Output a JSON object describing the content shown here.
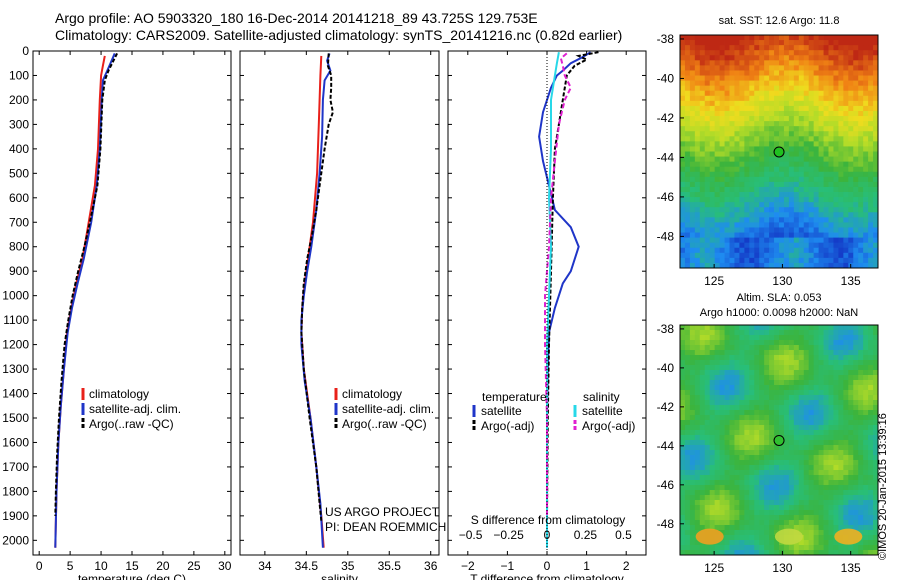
{
  "header": {
    "line1": "Argo profile: AO 5903320_180 16-Dec-2014 20141218_89 43.725S 129.753E",
    "line2": "Climatology: CARS2009. Satellite-adjusted climatology: synTS_20141216.nc (0.82d earlier)"
  },
  "watermark": "©IMOS 20-Jan-2015 13:39:16",
  "colors": {
    "climatology": "#e8201a",
    "satellite": "#1f35c8",
    "argo": "#000000",
    "cyan": "#28d8e8",
    "magenta": "#e020d0"
  },
  "chart_data": [
    {
      "type": "line",
      "xlabel": "temperature (deg C)",
      "ylabel": "",
      "xlim": [
        -1,
        31
      ],
      "ylim": [
        2060,
        0
      ],
      "xticks": [
        0,
        5,
        10,
        15,
        20,
        25,
        30
      ],
      "xtick_labels": [
        "0",
        "5",
        "10",
        "15",
        "20",
        "25",
        "30"
      ],
      "yticks": [
        0,
        100,
        200,
        300,
        400,
        500,
        600,
        700,
        800,
        900,
        1000,
        1100,
        1200,
        1300,
        1400,
        1500,
        1600,
        1700,
        1800,
        1900,
        2000
      ],
      "ytick_labels": [
        "0",
        "100",
        "200",
        "300",
        "400",
        "500",
        "600",
        "700",
        "800",
        "900",
        "1000",
        "1100",
        "1200",
        "1300",
        "1400",
        "1500",
        "1600",
        "1700",
        "1800",
        "1900",
        "2000"
      ],
      "legend": [
        "climatology",
        "satellite-adj. clim.",
        "Argo(..raw -QC)"
      ],
      "series": [
        {
          "name": "climatology",
          "color": "red",
          "dash": "",
          "points": [
            [
              10.6,
              20
            ],
            [
              10.3,
              60
            ],
            [
              10.0,
              100
            ],
            [
              9.8,
              200
            ],
            [
              9.5,
              400
            ],
            [
              9.0,
              550
            ],
            [
              8.0,
              700
            ],
            [
              7.0,
              850
            ],
            [
              6.0,
              950
            ],
            [
              5.2,
              1050
            ],
            [
              4.5,
              1150
            ],
            [
              4.0,
              1300
            ],
            [
              3.5,
              1450
            ],
            [
              3.1,
              1600
            ],
            [
              2.8,
              1800
            ],
            [
              2.6,
              2030
            ]
          ]
        },
        {
          "name": "satellite-adj. clim.",
          "color": "blue",
          "dash": "",
          "points": [
            [
              12.2,
              10
            ],
            [
              11.7,
              40
            ],
            [
              11.0,
              80
            ],
            [
              10.3,
              120
            ],
            [
              10.1,
              200
            ],
            [
              9.8,
              400
            ],
            [
              9.3,
              550
            ],
            [
              8.4,
              700
            ],
            [
              7.2,
              850
            ],
            [
              6.2,
              950
            ],
            [
              5.3,
              1050
            ],
            [
              4.6,
              1150
            ],
            [
              4.0,
              1300
            ],
            [
              3.5,
              1450
            ],
            [
              3.1,
              1600
            ],
            [
              2.8,
              1800
            ],
            [
              2.6,
              2030
            ]
          ]
        },
        {
          "name": "Argo(..raw -QC)",
          "color": "black",
          "dash": "4,2",
          "points": [
            [
              12.6,
              10
            ],
            [
              11.8,
              50
            ],
            [
              11.2,
              80
            ],
            [
              10.6,
              120
            ],
            [
              10.2,
              200
            ],
            [
              9.9,
              400
            ],
            [
              9.4,
              550
            ],
            [
              8.2,
              700
            ],
            [
              7.3,
              800
            ],
            [
              6.3,
              900
            ],
            [
              5.4,
              1000
            ],
            [
              4.7,
              1100
            ],
            [
              4.1,
              1200
            ],
            [
              3.6,
              1350
            ],
            [
              3.2,
              1500
            ],
            [
              2.9,
              1650
            ],
            [
              2.7,
              1800
            ],
            [
              2.6,
              1900
            ]
          ]
        }
      ]
    },
    {
      "type": "line",
      "xlabel": "salinity",
      "xlim": [
        33.7,
        36.1
      ],
      "ylim": [
        2060,
        0
      ],
      "xticks": [
        34,
        34.5,
        35,
        35.5,
        36
      ],
      "xtick_labels": [
        "34",
        "34.5",
        "35",
        "35.5",
        "36"
      ],
      "legend": [
        "climatology",
        "satellite-adj. clim.",
        "Argo(..raw -QC)"
      ],
      "annotation": [
        "US ARGO PROJECT",
        "PI: DEAN ROEMMICH"
      ],
      "series": [
        {
          "name": "climatology",
          "color": "red",
          "dash": "",
          "points": [
            [
              34.68,
              20
            ],
            [
              34.67,
              100
            ],
            [
              34.65,
              300
            ],
            [
              34.63,
              500
            ],
            [
              34.58,
              700
            ],
            [
              34.52,
              850
            ],
            [
              34.48,
              950
            ],
            [
              34.45,
              1050
            ],
            [
              34.44,
              1150
            ],
            [
              34.47,
              1300
            ],
            [
              34.55,
              1500
            ],
            [
              34.62,
              1700
            ],
            [
              34.68,
              1900
            ],
            [
              34.71,
              2030
            ]
          ]
        },
        {
          "name": "satellite-adj. clim.",
          "color": "blue",
          "dash": "",
          "points": [
            [
              34.78,
              10
            ],
            [
              34.75,
              40
            ],
            [
              34.79,
              80
            ],
            [
              34.72,
              120
            ],
            [
              34.7,
              200
            ],
            [
              34.69,
              350
            ],
            [
              34.66,
              500
            ],
            [
              34.62,
              650
            ],
            [
              34.56,
              800
            ],
            [
              34.51,
              900
            ],
            [
              34.47,
              1000
            ],
            [
              34.44,
              1100
            ],
            [
              34.44,
              1200
            ],
            [
              34.48,
              1350
            ],
            [
              34.55,
              1500
            ],
            [
              34.62,
              1700
            ],
            [
              34.67,
              1850
            ],
            [
              34.7,
              2030
            ]
          ]
        },
        {
          "name": "Argo(..raw -QC)",
          "color": "black",
          "dash": "4,2",
          "points": [
            [
              34.77,
              10
            ],
            [
              34.76,
              60
            ],
            [
              34.8,
              100
            ],
            [
              34.8,
              150
            ],
            [
              34.79,
              200
            ],
            [
              34.82,
              250
            ],
            [
              34.77,
              300
            ],
            [
              34.72,
              400
            ],
            [
              34.66,
              550
            ],
            [
              34.62,
              650
            ],
            [
              34.57,
              750
            ],
            [
              34.51,
              850
            ],
            [
              34.47,
              950
            ],
            [
              34.45,
              1050
            ],
            [
              34.44,
              1150
            ],
            [
              34.47,
              1300
            ],
            [
              34.54,
              1500
            ],
            [
              34.62,
              1700
            ],
            [
              34.66,
              1850
            ],
            [
              34.68,
              1920
            ]
          ]
        }
      ]
    },
    {
      "type": "line",
      "xlabel": "T difference from climatology",
      "xlabel_top": "S difference from climatology",
      "xlim": [
        -2.5,
        2.5
      ],
      "ylim": [
        2060,
        0
      ],
      "xticks": [
        -2,
        -1,
        0,
        1,
        2
      ],
      "xtick_labels": [
        "−2",
        "−1",
        "0",
        "1",
        "2"
      ],
      "sticks": [
        -1.93,
        -0.97,
        0,
        0.97,
        1.93
      ],
      "stick_labels": [
        "−0.5",
        "−0.25",
        "0",
        "0.25",
        "0.5"
      ],
      "legend_titles": [
        "temperature",
        "salinity"
      ],
      "legend": [
        "satellite",
        "Argo(-adj)",
        "satellite",
        "Argo(-adj)"
      ],
      "series": [
        {
          "name": "satellite",
          "color": "blue",
          "dash": "",
          "points": [
            [
              1.1,
              5
            ],
            [
              0.9,
              25
            ],
            [
              0.6,
              50
            ],
            [
              0.4,
              80
            ],
            [
              0.25,
              100
            ],
            [
              0.1,
              150
            ],
            [
              -0.1,
              250
            ],
            [
              -0.2,
              350
            ],
            [
              -0.1,
              450
            ],
            [
              0.05,
              550
            ],
            [
              0.2,
              650
            ],
            [
              0.6,
              720
            ],
            [
              0.8,
              800
            ],
            [
              0.6,
              900
            ],
            [
              0.4,
              950
            ],
            [
              0.2,
              1050
            ],
            [
              0.05,
              1150
            ],
            [
              0.02,
              1300
            ],
            [
              0.0,
              1500
            ],
            [
              0.0,
              2030
            ]
          ]
        },
        {
          "name": "Argo(-adj)",
          "color": "black",
          "dash": "4,2",
          "points": [
            [
              1.3,
              5
            ],
            [
              0.8,
              20
            ],
            [
              1.0,
              35
            ],
            [
              0.7,
              60
            ],
            [
              0.5,
              100
            ],
            [
              0.4,
              200
            ],
            [
              0.3,
              300
            ],
            [
              0.2,
              400
            ],
            [
              0.15,
              600
            ],
            [
              0.1,
              900
            ],
            [
              0.05,
              1200
            ],
            [
              0.02,
              1500
            ],
            [
              0.0,
              1900
            ]
          ]
        },
        {
          "name": "satellite",
          "color": "cyan",
          "dash": "",
          "points": [
            [
              0.3,
              5
            ],
            [
              0.25,
              50
            ],
            [
              0.2,
              100
            ],
            [
              0.1,
              200
            ],
            [
              0.1,
              400
            ],
            [
              0.05,
              600
            ],
            [
              0.1,
              800
            ],
            [
              0.05,
              1000
            ],
            [
              0.0,
              1200
            ],
            [
              0.0,
              1500
            ],
            [
              0.0,
              2030
            ]
          ]
        },
        {
          "name": "Argo(-adj)",
          "color": "magenta",
          "dash": "5,3",
          "points": [
            [
              0.5,
              10
            ],
            [
              0.35,
              30
            ],
            [
              0.4,
              60
            ],
            [
              0.45,
              100
            ],
            [
              0.6,
              150
            ],
            [
              0.45,
              200
            ],
            [
              0.3,
              300
            ],
            [
              0.2,
              450
            ],
            [
              0.1,
              600
            ],
            [
              0.05,
              800
            ],
            [
              -0.05,
              1000
            ],
            [
              -0.05,
              1200
            ],
            [
              0.0,
              1500
            ],
            [
              0.0,
              1900
            ]
          ]
        }
      ]
    },
    {
      "type": "heatmap",
      "title": "sat. SST: 12.6 Argo: 11.8",
      "xlim": [
        122.5,
        137
      ],
      "ylim": [
        -49.6,
        -37.8
      ],
      "xticks": [
        125,
        130,
        135
      ],
      "xtick_labels": [
        "125",
        "130",
        "135"
      ],
      "yticks": [
        -38,
        -40,
        -42,
        -44,
        -46,
        -48
      ],
      "ytick_labels": [
        "-38",
        "-40",
        "-42",
        "-44",
        "-46",
        "-48"
      ],
      "marker": {
        "lon": 129.753,
        "lat": -43.725,
        "color": "#20c020"
      }
    },
    {
      "type": "heatmap",
      "title": "Altim. SLA: 0.053",
      "subtitle": "Argo h1000: 0.0098 h2000: NaN",
      "xlim": [
        122.5,
        137
      ],
      "ylim": [
        -49.6,
        -37.8
      ],
      "xticks": [
        125,
        130,
        135
      ],
      "xtick_labels": [
        "125",
        "130",
        "135"
      ],
      "yticks": [
        -38,
        -40,
        -42,
        -44,
        -46,
        -48
      ],
      "ytick_labels": [
        "-38",
        "-40",
        "-42",
        "-44",
        "-46",
        "-48"
      ],
      "marker": {
        "lon": 129.753,
        "lat": -43.725,
        "color": "#30c030"
      }
    }
  ]
}
